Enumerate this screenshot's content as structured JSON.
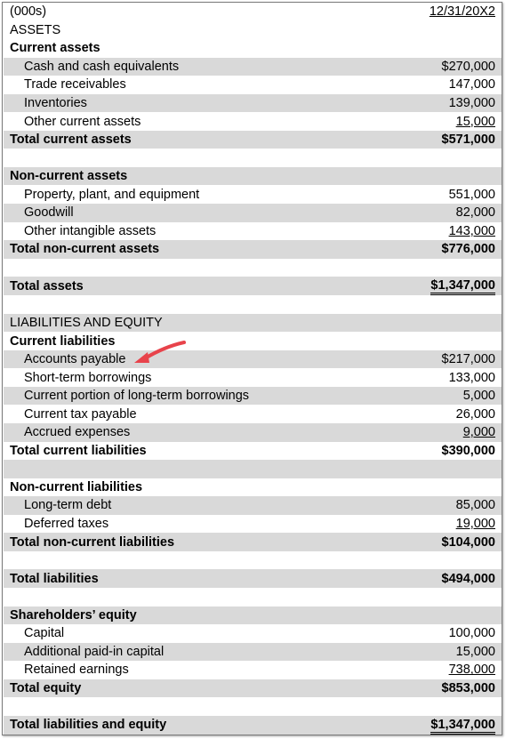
{
  "header": {
    "units": "(000s)",
    "date": "12/31/20X2"
  },
  "rows": [
    {
      "label": "ASSETS",
      "value": "",
      "style": "head",
      "shade": false
    },
    {
      "label": "Current assets",
      "value": "",
      "style": "bold",
      "shade": false
    },
    {
      "label": "Cash and cash equivalents",
      "value": "$270,000",
      "style": "indent",
      "shade": true
    },
    {
      "label": "Trade receivables",
      "value": "147,000",
      "style": "indent",
      "shade": false
    },
    {
      "label": "Inventories",
      "value": "139,000",
      "style": "indent",
      "shade": true
    },
    {
      "label": "Other current assets",
      "value": "15,000",
      "style": "indent",
      "shade": false,
      "underline": "single"
    },
    {
      "label": "Total current assets",
      "value": "$571,000",
      "style": "bold",
      "shade": true
    },
    {
      "label": "",
      "value": "",
      "style": "blank",
      "shade": false
    },
    {
      "label": "Non-current assets",
      "value": "",
      "style": "bold",
      "shade": true
    },
    {
      "label": "Property, plant, and equipment",
      "value": "551,000",
      "style": "indent",
      "shade": false
    },
    {
      "label": "Goodwill",
      "value": "82,000",
      "style": "indent",
      "shade": true
    },
    {
      "label": "Other intangible assets",
      "value": "143,000",
      "style": "indent",
      "shade": false,
      "underline": "single"
    },
    {
      "label": "Total non-current assets",
      "value": "$776,000",
      "style": "bold",
      "shade": true
    },
    {
      "label": "",
      "value": "",
      "style": "blank",
      "shade": false
    },
    {
      "label": "Total assets",
      "value": "$1,347,000",
      "style": "bold",
      "shade": true,
      "underline": "double"
    },
    {
      "label": "",
      "value": "",
      "style": "blank",
      "shade": false
    },
    {
      "label": "LIABILITIES AND EQUITY",
      "value": "",
      "style": "head",
      "shade": true
    },
    {
      "label": "Current liabilities",
      "value": "",
      "style": "bold",
      "shade": false
    },
    {
      "label": "Accounts payable",
      "value": "$217,000",
      "style": "indent",
      "shade": true
    },
    {
      "label": "Short-term borrowings",
      "value": "133,000",
      "style": "indent",
      "shade": false
    },
    {
      "label": "Current portion of long-term borrowings",
      "value": "5,000",
      "style": "indent",
      "shade": true
    },
    {
      "label": "Current tax payable",
      "value": "26,000",
      "style": "indent",
      "shade": false
    },
    {
      "label": "Accrued expenses",
      "value": "9,000",
      "style": "indent",
      "shade": true,
      "underline": "single"
    },
    {
      "label": "Total current liabilities",
      "value": "$390,000",
      "style": "bold",
      "shade": false
    },
    {
      "label": "",
      "value": "",
      "style": "blank",
      "shade": true
    },
    {
      "label": "Non-current liabilities",
      "value": "",
      "style": "bold",
      "shade": false
    },
    {
      "label": "Long-term debt",
      "value": "85,000",
      "style": "indent",
      "shade": true
    },
    {
      "label": "Deferred taxes",
      "value": "19,000",
      "style": "indent",
      "shade": false,
      "underline": "single"
    },
    {
      "label": "Total non-current liabilities",
      "value": "$104,000",
      "style": "bold",
      "shade": true
    },
    {
      "label": "",
      "value": "",
      "style": "blank",
      "shade": false
    },
    {
      "label": "Total liabilities",
      "value": "$494,000",
      "style": "bold",
      "shade": true
    },
    {
      "label": "",
      "value": "",
      "style": "blank",
      "shade": false
    },
    {
      "label": "Shareholders’ equity",
      "value": "",
      "style": "bold",
      "shade": true
    },
    {
      "label": "Capital",
      "value": "100,000",
      "style": "indent",
      "shade": false
    },
    {
      "label": "Additional paid-in capital",
      "value": "15,000",
      "style": "indent",
      "shade": true
    },
    {
      "label": "Retained earnings",
      "value": "738,000",
      "style": "indent",
      "shade": false,
      "underline": "single"
    },
    {
      "label": "Total equity",
      "value": "$853,000",
      "style": "bold",
      "shade": true
    },
    {
      "label": "",
      "value": "",
      "style": "blank",
      "shade": false
    },
    {
      "label": "Total liabilities and equity",
      "value": "$1,347,000",
      "style": "bold",
      "shade": true,
      "underline": "double"
    }
  ],
  "annotation": {
    "icon": "red-arrow-icon",
    "color": "#e8434b",
    "points_to": "Accounts payable"
  }
}
